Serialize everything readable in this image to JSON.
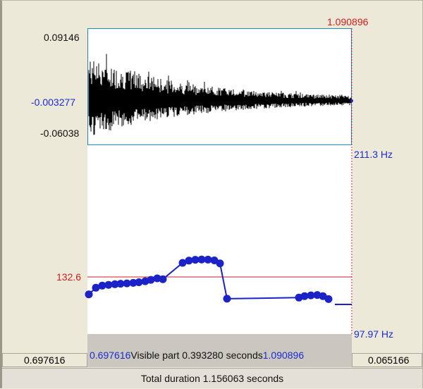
{
  "waveform": {
    "max_label": "0.09146",
    "mid_label": "-0.003277",
    "min_label": "-0.06038"
  },
  "cursor": {
    "time_label": "1.090896"
  },
  "pitch": {
    "top_hz_label": "211.3 Hz",
    "bottom_hz_label": "97.97 Hz",
    "cursor_value_label": "132.6",
    "points_hz": [
      122.5,
      126.6,
      127.9,
      128.4,
      128.8,
      129.1,
      129.3,
      129.6,
      130.0,
      130.6,
      131.5,
      132.4,
      131.9,
      142.0,
      143.4,
      143.9,
      144.1,
      144.0,
      143.5,
      141.7,
      119.8,
      120.5,
      121.4,
      121.9,
      122.1,
      121.4,
      119.6
    ]
  },
  "status": {
    "left_time": "0.697616",
    "visible_start": "0.697616",
    "visible_text": "Visible part 0.393280 seconds",
    "visible_end": "1.090896",
    "right_time": "0.065166",
    "total_duration": "Total duration 1.156063 seconds"
  },
  "colors": {
    "pitch_blue": "#1a22c8",
    "cursor_red": "#d11c1c",
    "wave_border": "#1e8cc2"
  }
}
